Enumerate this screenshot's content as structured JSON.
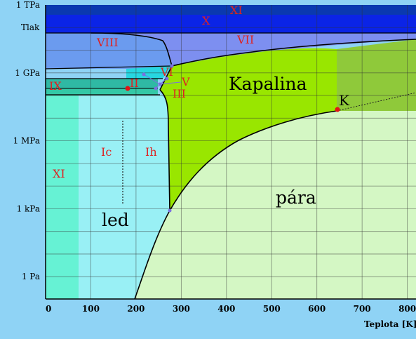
{
  "chart_data": {
    "type": "diagram",
    "title": "",
    "xlabel": "Teplota [K]",
    "ylabel": "Tlak",
    "x_ticks": [
      "0",
      "100",
      "200",
      "300",
      "400",
      "500",
      "600",
      "700",
      "800"
    ],
    "y_ticks": [
      "1 TPa",
      "1 GPa",
      "1 MPa",
      "1 kPa",
      "1 Pa"
    ],
    "regions": [
      {
        "label": "XI",
        "color": "#dd2222"
      },
      {
        "label": "X",
        "color": "#dd2222"
      },
      {
        "label": "VII",
        "color": "#dd2222"
      },
      {
        "label": "VIII",
        "color": "#dd2222"
      },
      {
        "label": "VI",
        "color": "#dd2222"
      },
      {
        "label": "V",
        "color": "#dd2222"
      },
      {
        "label": "IX",
        "color": "#dd2222"
      },
      {
        "label": "II",
        "color": "#dd2222"
      },
      {
        "label": "III",
        "color": "#dd2222"
      },
      {
        "label": "Ic",
        "color": "#dd2222"
      },
      {
        "label": "Ih",
        "color": "#dd2222"
      },
      {
        "label": "XI",
        "color": "#dd2222"
      },
      {
        "label": "led",
        "color": "#000000"
      },
      {
        "label": "Kapalina",
        "color": "#000000"
      },
      {
        "label": "pára",
        "color": "#000000"
      }
    ],
    "critical_point": {
      "label": "K",
      "temperature": 647,
      "pressure_pa": 22000000
    },
    "triple_points_k": [
      273,
      251,
      256,
      273,
      355
    ],
    "colors": {
      "background": "#8fd3f5",
      "ice_ih": "#99f0f5",
      "ice_xi": "#66f2d4",
      "liquid": "#99e600",
      "supercritical": "#8fc93a",
      "vapor": "#d4f7c4",
      "vii": "#7d8ff0",
      "viii": "#6b9bef",
      "x": "#0b24e6",
      "xi_top": "#0a39b0"
    }
  }
}
